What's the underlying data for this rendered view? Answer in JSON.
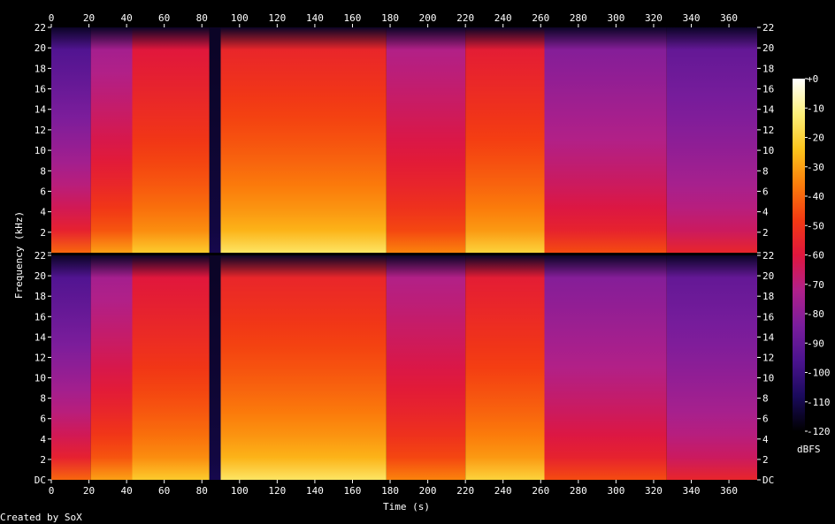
{
  "chart_data": {
    "type": "heatmap",
    "title": "",
    "xlabel": "Time (s)",
    "ylabel": "Frequency (kHz)",
    "colorbar_label": "dBFS",
    "credit": "Created by SoX",
    "xlim": [
      0,
      375
    ],
    "x_ticks": [
      0,
      20,
      40,
      60,
      80,
      100,
      120,
      140,
      160,
      180,
      200,
      220,
      240,
      260,
      280,
      300,
      320,
      340,
      360
    ],
    "ylim": [
      0,
      22
    ],
    "y_ticks": [
      {
        "value": 0,
        "label": "DC"
      },
      {
        "value": 2,
        "label": "2"
      },
      {
        "value": 4,
        "label": "4"
      },
      {
        "value": 6,
        "label": "6"
      },
      {
        "value": 8,
        "label": "8"
      },
      {
        "value": 10,
        "label": "10"
      },
      {
        "value": 12,
        "label": "12"
      },
      {
        "value": 14,
        "label": "14"
      },
      {
        "value": 16,
        "label": "16"
      },
      {
        "value": 18,
        "label": "18"
      },
      {
        "value": 20,
        "label": "20"
      },
      {
        "value": 22,
        "label": "22"
      }
    ],
    "colorbar_range": [
      -120,
      0
    ],
    "colorbar_ticks": [
      {
        "value": 0,
        "label": "+0"
      },
      {
        "value": -10,
        "label": "-10"
      },
      {
        "value": -20,
        "label": "-20"
      },
      {
        "value": -30,
        "label": "-30"
      },
      {
        "value": -40,
        "label": "-40"
      },
      {
        "value": -50,
        "label": "-50"
      },
      {
        "value": -60,
        "label": "-60"
      },
      {
        "value": -70,
        "label": "-70"
      },
      {
        "value": -80,
        "label": "-80"
      },
      {
        "value": -90,
        "label": "-90"
      },
      {
        "value": -100,
        "label": "-100"
      },
      {
        "value": -110,
        "label": "-110"
      },
      {
        "value": -120,
        "label": "-120"
      }
    ],
    "channels": [
      {
        "segments": [
          {
            "start": 0,
            "end": 21,
            "low_db": -40,
            "high_db": -95
          },
          {
            "start": 21,
            "end": 43,
            "low_db": -30,
            "high_db": -75
          },
          {
            "start": 43,
            "end": 84,
            "low_db": -22,
            "high_db": -60
          },
          {
            "start": 84,
            "end": 90,
            "low_db": -110,
            "high_db": -115
          },
          {
            "start": 90,
            "end": 178,
            "low_db": -15,
            "high_db": -55
          },
          {
            "start": 178,
            "end": 220,
            "low_db": -35,
            "high_db": -72
          },
          {
            "start": 220,
            "end": 262,
            "low_db": -20,
            "high_db": -58
          },
          {
            "start": 262,
            "end": 327,
            "low_db": -45,
            "high_db": -82
          },
          {
            "start": 327,
            "end": 375,
            "low_db": -55,
            "high_db": -90
          }
        ]
      },
      {
        "segments": [
          {
            "start": 0,
            "end": 21,
            "low_db": -40,
            "high_db": -95
          },
          {
            "start": 21,
            "end": 43,
            "low_db": -30,
            "high_db": -75
          },
          {
            "start": 43,
            "end": 84,
            "low_db": -22,
            "high_db": -60
          },
          {
            "start": 84,
            "end": 90,
            "low_db": -110,
            "high_db": -115
          },
          {
            "start": 90,
            "end": 178,
            "low_db": -15,
            "high_db": -55
          },
          {
            "start": 178,
            "end": 220,
            "low_db": -35,
            "high_db": -72
          },
          {
            "start": 220,
            "end": 262,
            "low_db": -20,
            "high_db": -58
          },
          {
            "start": 262,
            "end": 327,
            "low_db": -45,
            "high_db": -82
          },
          {
            "start": 327,
            "end": 375,
            "low_db": -55,
            "high_db": -90
          }
        ]
      }
    ],
    "colors": {
      "background": "#000000",
      "colormap": [
        "#000000",
        "#1a0a5c",
        "#4b138f",
        "#7a1d9c",
        "#b0208a",
        "#e0163d",
        "#f33a12",
        "#fb7d0b",
        "#fcc41c",
        "#fdf07a",
        "#ffffff"
      ]
    }
  }
}
